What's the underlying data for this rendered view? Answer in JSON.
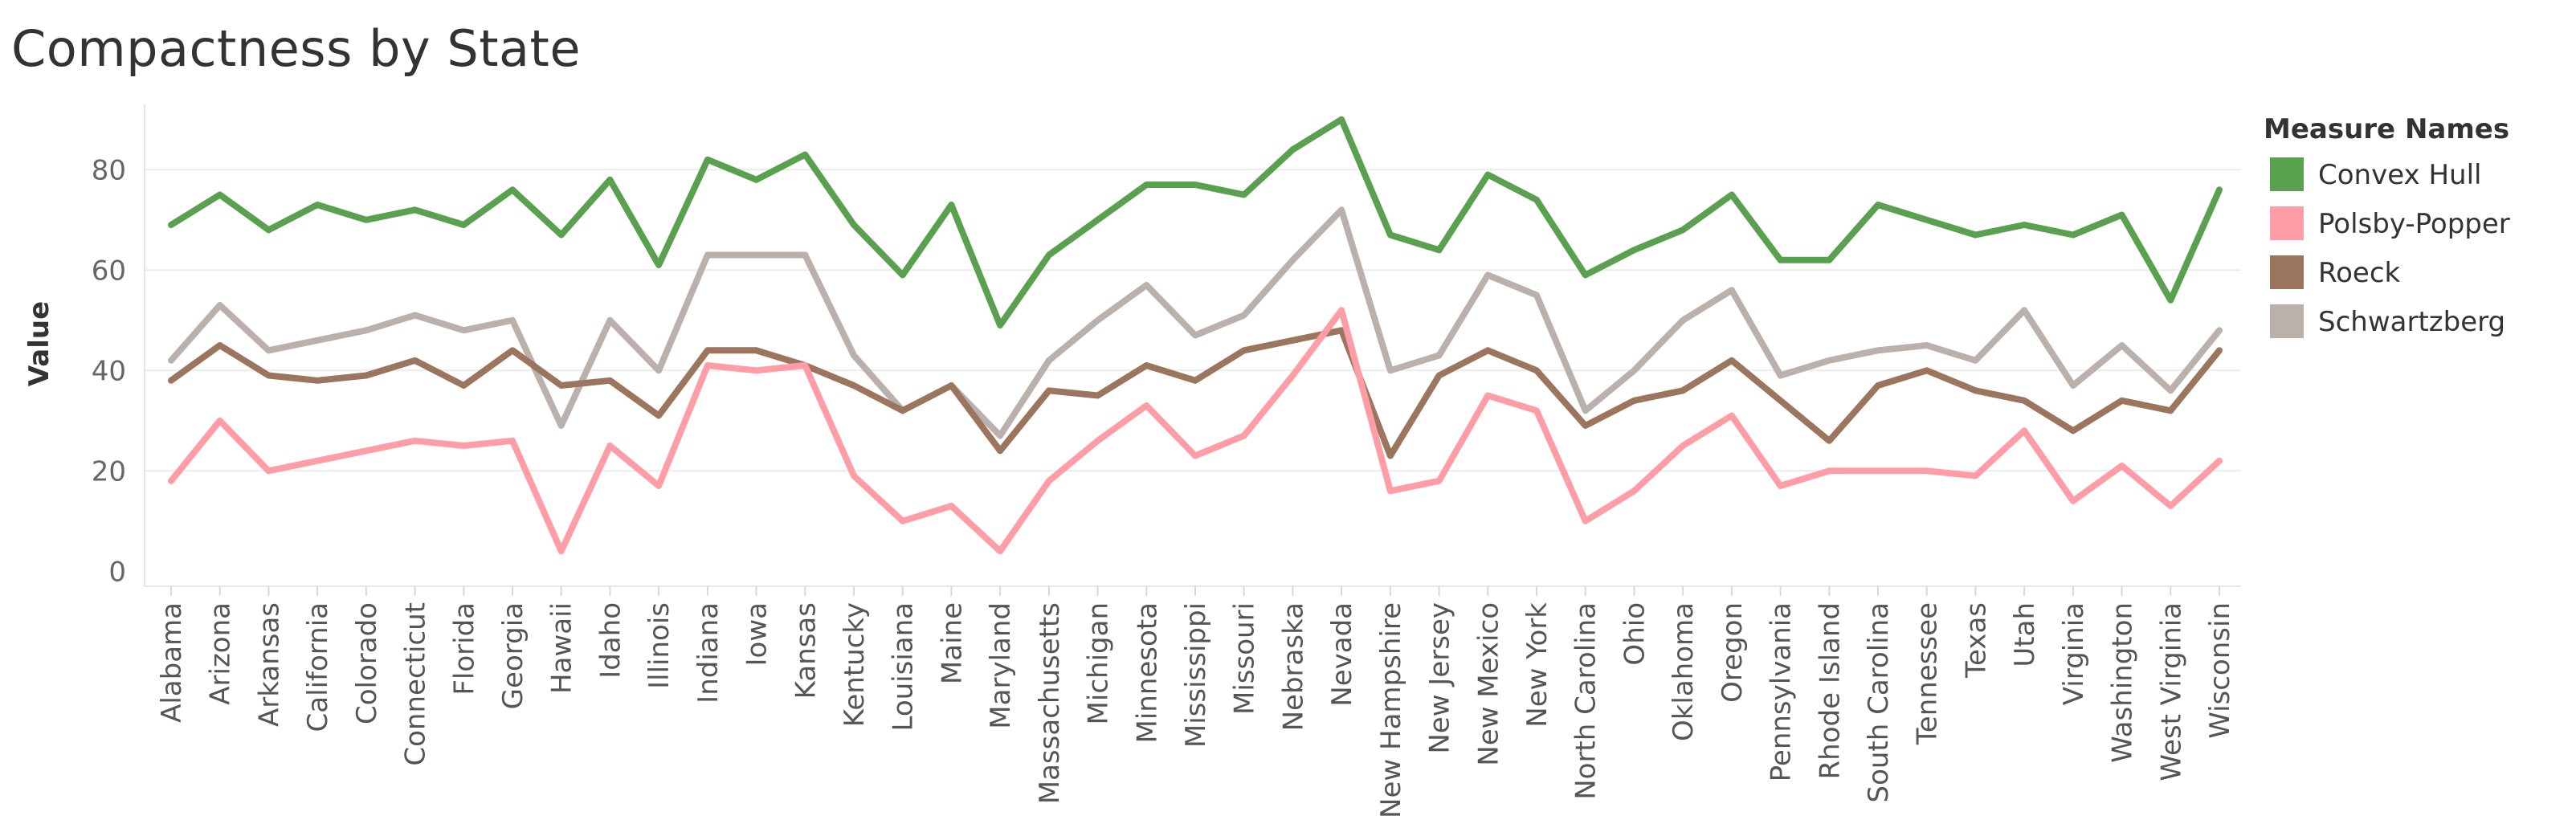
{
  "chart_data": {
    "type": "line",
    "title": "Compactness by State",
    "ylabel": "Value",
    "xlabel": "",
    "ylim": [
      -3,
      93
    ],
    "yticks": [
      0,
      20,
      40,
      60,
      80
    ],
    "grid": true,
    "legend_title": "Measure Names",
    "legend_position": "right",
    "categories": [
      "Alabama",
      "Arizona",
      "Arkansas",
      "California",
      "Colorado",
      "Connecticut",
      "Florida",
      "Georgia",
      "Hawaii",
      "Idaho",
      "Illinois",
      "Indiana",
      "Iowa",
      "Kansas",
      "Kentucky",
      "Louisiana",
      "Maine",
      "Maryland",
      "Massachusetts",
      "Michigan",
      "Minnesota",
      "Mississippi",
      "Missouri",
      "Nebraska",
      "Nevada",
      "New Hampshire",
      "New Jersey",
      "New Mexico",
      "New York",
      "North Carolina",
      "Ohio",
      "Oklahoma",
      "Oregon",
      "Pennsylvania",
      "Rhode Island",
      "South Carolina",
      "Tennessee",
      "Texas",
      "Utah",
      "Virginia",
      "Washington",
      "West Virginia",
      "Wisconsin"
    ],
    "series": [
      {
        "name": "Convex Hull",
        "color": "#59a14f",
        "values": [
          69,
          75,
          68,
          73,
          70,
          72,
          69,
          76,
          67,
          78,
          61,
          82,
          78,
          83,
          69,
          59,
          73,
          49,
          63,
          70,
          77,
          77,
          75,
          84,
          90,
          67,
          64,
          79,
          74,
          59,
          64,
          68,
          75,
          62,
          62,
          73,
          70,
          67,
          69,
          67,
          71,
          54,
          76
        ]
      },
      {
        "name": "Polsby-Popper",
        "color": "#ff9da7",
        "values": [
          18,
          30,
          20,
          22,
          24,
          26,
          25,
          26,
          4,
          25,
          17,
          41,
          40,
          41,
          19,
          10,
          13,
          4,
          18,
          26,
          33,
          23,
          27,
          39,
          52,
          16,
          18,
          35,
          32,
          10,
          16,
          25,
          31,
          17,
          20,
          20,
          20,
          19,
          28,
          14,
          21,
          13,
          22
        ]
      },
      {
        "name": "Roeck",
        "color": "#9c755f",
        "values": [
          38,
          45,
          39,
          38,
          39,
          42,
          37,
          44,
          37,
          38,
          31,
          44,
          44,
          41,
          37,
          32,
          37,
          24,
          36,
          35,
          41,
          38,
          44,
          46,
          48,
          23,
          39,
          44,
          40,
          29,
          34,
          36,
          42,
          34,
          26,
          37,
          40,
          36,
          34,
          28,
          34,
          32,
          44
        ]
      },
      {
        "name": "Schwartzberg",
        "color": "#bab0ac",
        "values": [
          42,
          53,
          44,
          46,
          48,
          51,
          48,
          50,
          29,
          50,
          40,
          63,
          63,
          63,
          43,
          32,
          37,
          27,
          42,
          50,
          57,
          47,
          51,
          62,
          72,
          40,
          43,
          59,
          55,
          32,
          40,
          50,
          56,
          39,
          42,
          44,
          45,
          42,
          52,
          37,
          45,
          36,
          48
        ]
      }
    ]
  }
}
